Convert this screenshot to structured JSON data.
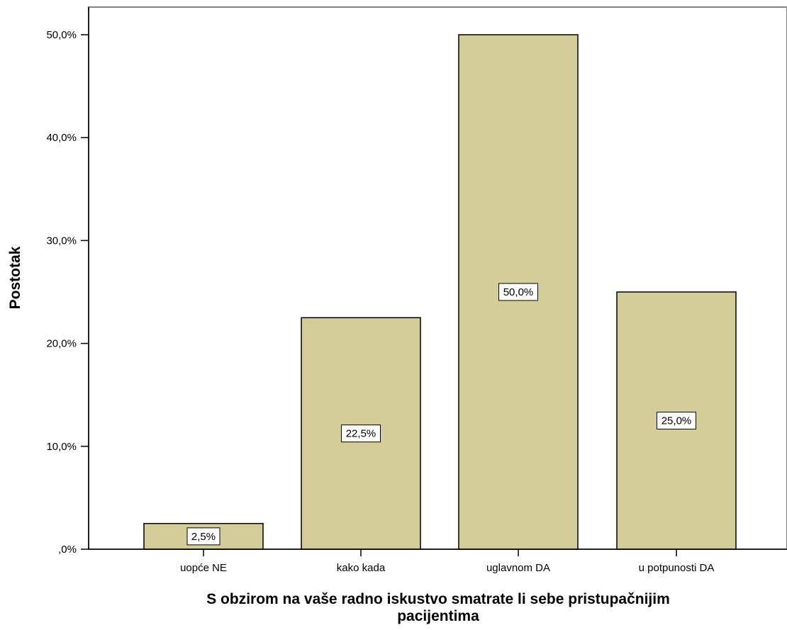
{
  "chart_data": {
    "type": "bar",
    "categories": [
      "uopće NE",
      "kako kada",
      "uglavnom  DA",
      "u potpunosti  DA"
    ],
    "values": [
      2.5,
      22.5,
      50.0,
      25.0
    ],
    "data_labels": [
      "2,5%",
      "22,5%",
      "50,0%",
      "25,0%"
    ],
    "ylabel": "Postotak",
    "xlabel_lines": [
      "S obzirom na vaše radno iskustvo smatrate li sebe pristupačnijim",
      "pacijentima"
    ],
    "ylim": [
      0,
      55
    ],
    "yticks": [
      0,
      10,
      20,
      30,
      40,
      50
    ],
    "ytick_labels": [
      ",0%",
      "10,0%",
      "20,0%",
      "30,0%",
      "40,0%",
      "50,0%"
    ],
    "grid": false,
    "colors": {
      "bar_fill": "#d3ce97",
      "bar_stroke": "#000000",
      "frame": "#808080"
    }
  }
}
